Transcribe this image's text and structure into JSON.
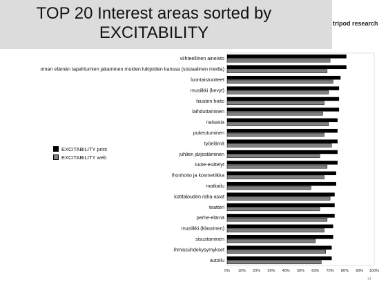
{
  "header": {
    "title_line1": "TOP 20 Interest areas sorted by",
    "title_line2": "EXCITABILITY",
    "brand": "tripod research"
  },
  "page_number": "14",
  "chart_data": {
    "type": "bar",
    "orientation": "horizontal",
    "categories": [
      "viihteellinen aineisto",
      "oman elämän tapahtumien jakaminen muiden lukijoiden kanssa (sosiaalinen media)",
      "luontaistuotteet",
      "musiikki (kevyt)",
      "hiusten hoito",
      "laihduttaminen",
      "naisasia",
      "pukeutuminen",
      "työelämä",
      "juhlien järjestäminen",
      "tuote-esittelyt",
      "ihonhoito ja kosmetiikka",
      "matkailu",
      "kotitalouden raha-asiat",
      "teatteri",
      "perhe-elämä",
      "musiikki (klassinen)",
      "sisustaminen",
      "ihmissuhdekysymykset",
      "autoilu"
    ],
    "series": [
      {
        "name": "EXCITABILITY print",
        "color": "#000000",
        "values": [
          81,
          81,
          77,
          76,
          76,
          76,
          75,
          75,
          75,
          75,
          75,
          74,
          74,
          73,
          73,
          73,
          72,
          72,
          71,
          71
        ]
      },
      {
        "name": "EXCITABILITY web",
        "color": "#808080",
        "values": [
          70,
          68,
          72,
          69,
          66,
          65,
          69,
          66,
          71,
          63,
          68,
          66,
          57,
          70,
          63,
          68,
          66,
          60,
          67,
          64
        ]
      }
    ],
    "x_ticks": [
      "0%",
      "10%",
      "20%",
      "30%",
      "40%",
      "50%",
      "60%",
      "70%",
      "80%",
      "90%",
      "100%"
    ],
    "xlim": [
      0,
      100
    ],
    "legend_position": "left"
  }
}
